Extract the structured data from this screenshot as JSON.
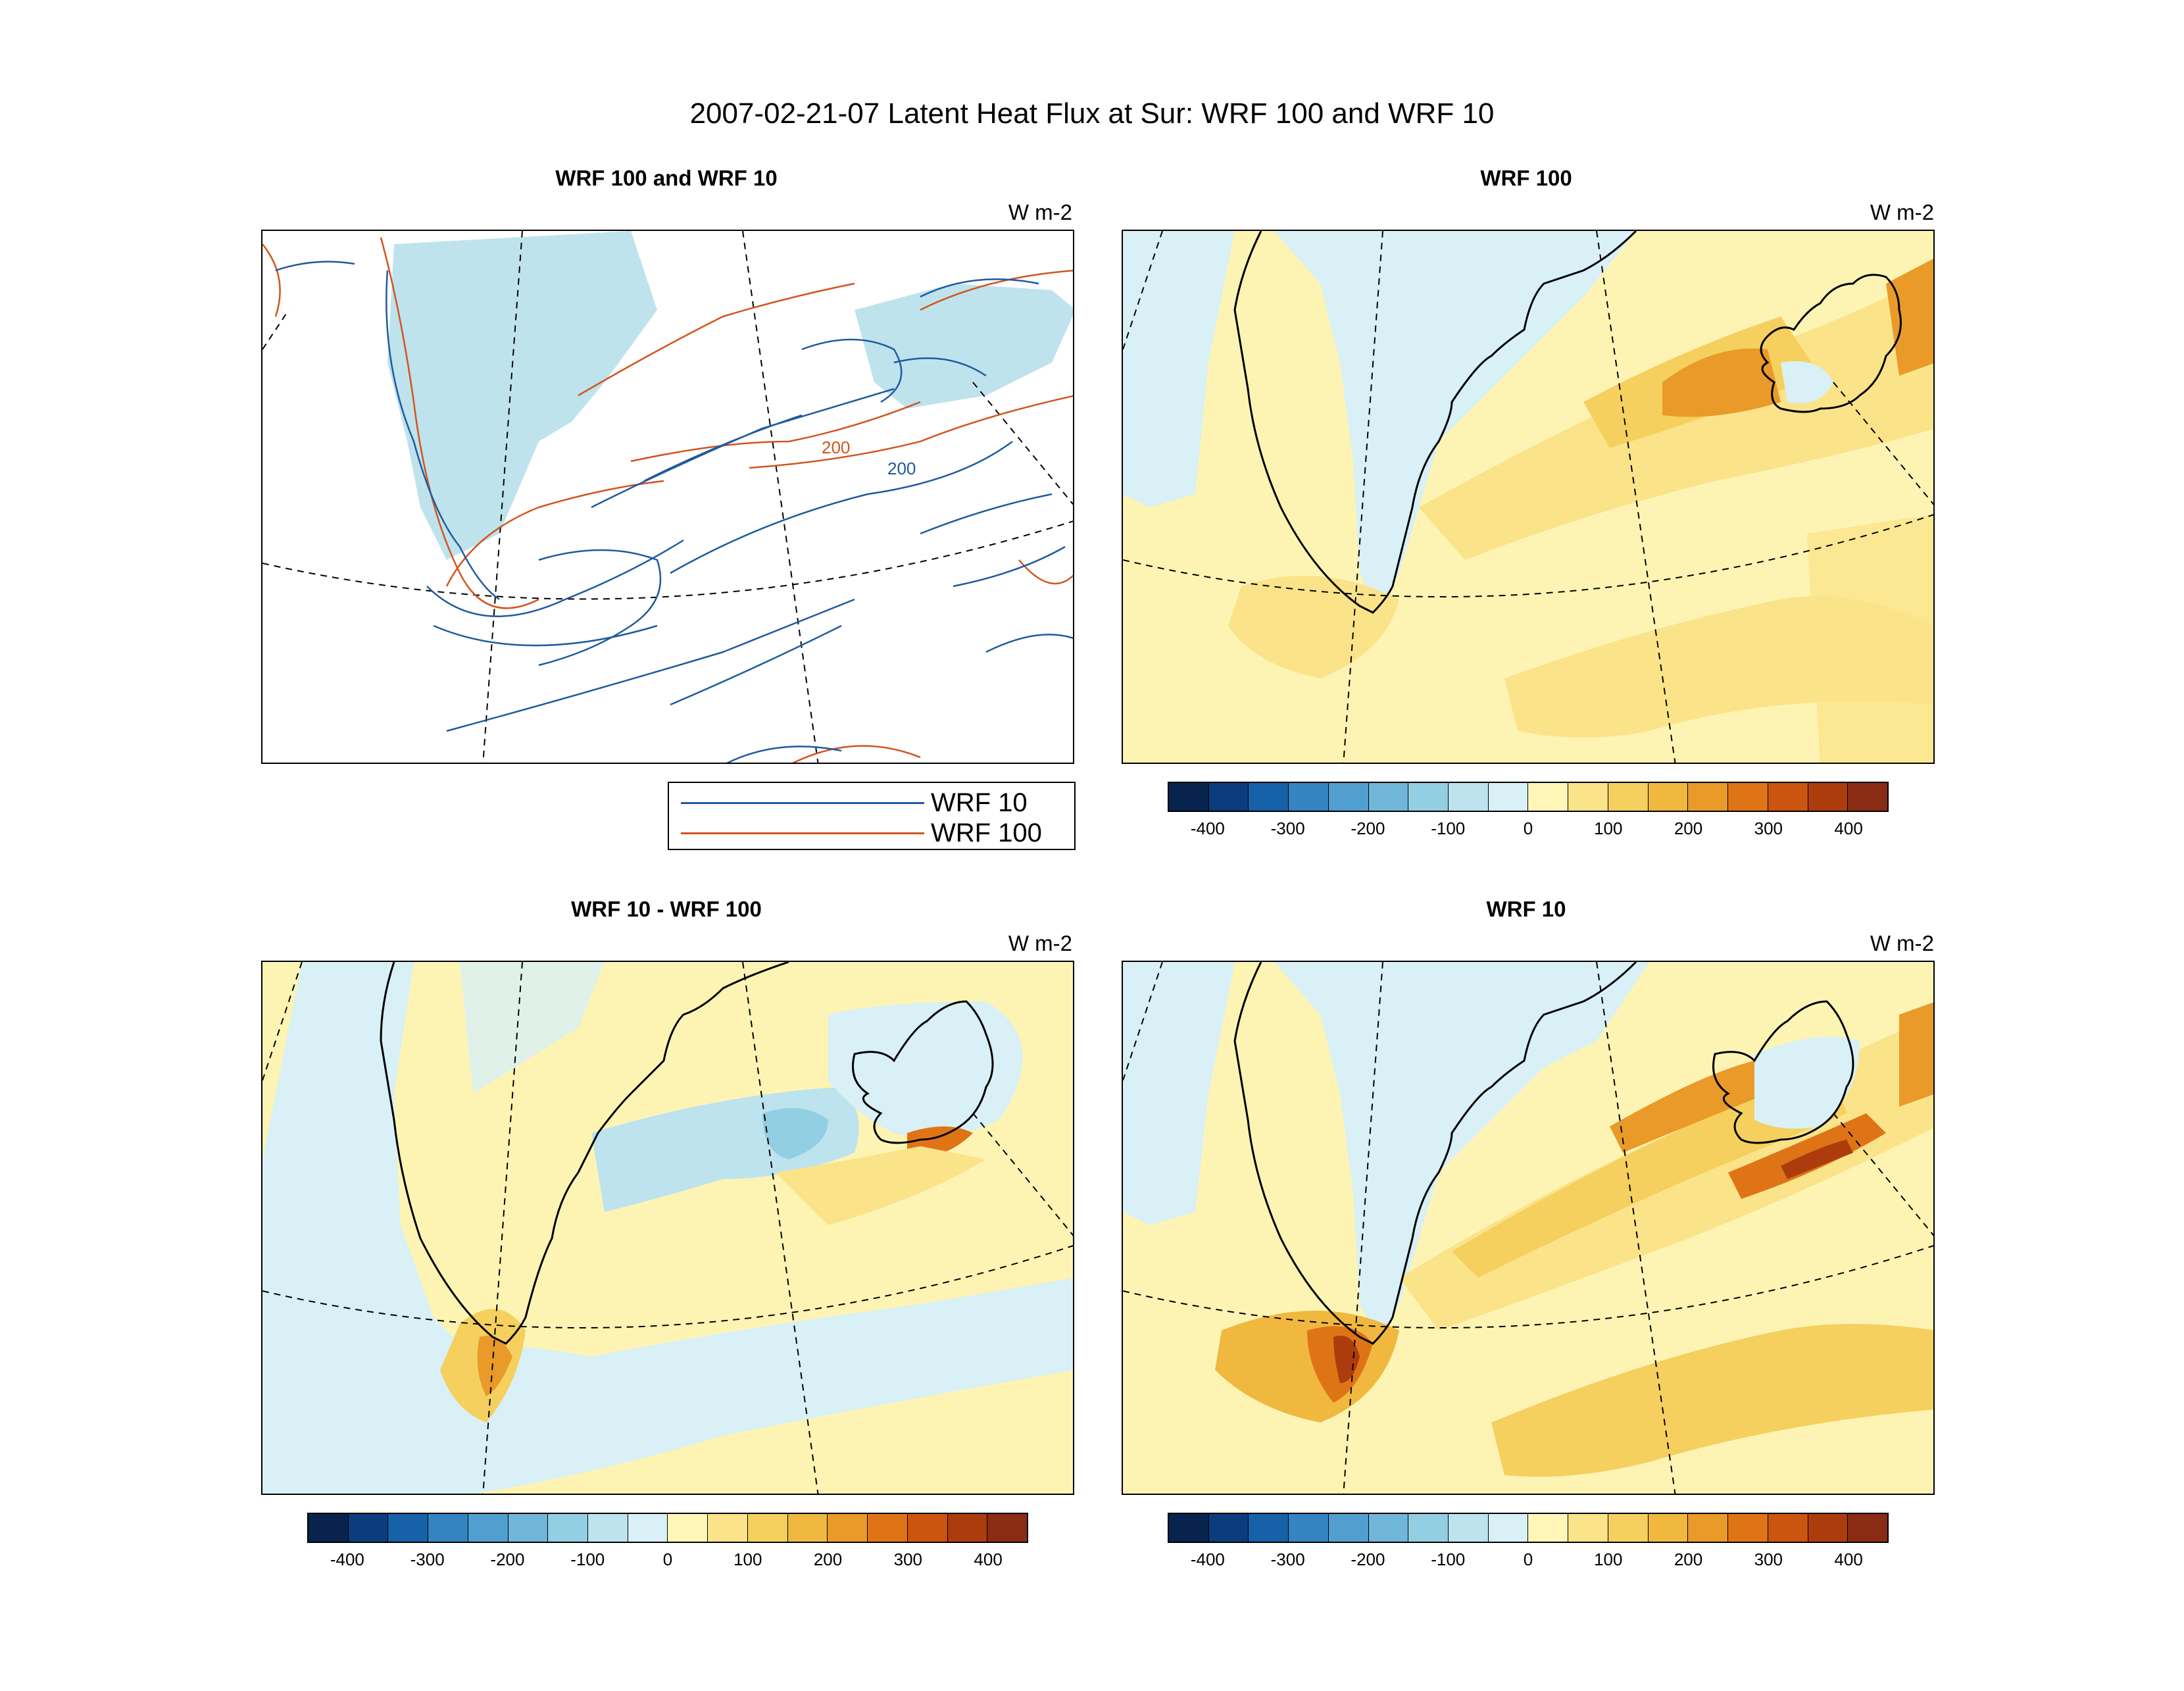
{
  "figure": {
    "title": "2007-02-21-07 Latent Heat Flux at Sur: WRF 100 and WRF 10"
  },
  "panels": [
    {
      "id": "overlay",
      "title": "WRF 100 and WRF 10",
      "units": "W m-2"
    },
    {
      "id": "wrf100",
      "title": "WRF 100",
      "units": "W m-2"
    },
    {
      "id": "diff",
      "title": "WRF 10 - WRF 100",
      "units": "W m-2"
    },
    {
      "id": "wrf10",
      "title": "WRF 10",
      "units": "W m-2"
    }
  ],
  "contour_labels": {
    "wrf100": "200",
    "wrf10": "200"
  },
  "legend": {
    "items": [
      {
        "label": "WRF 10",
        "color": "#1f5aa0"
      },
      {
        "label": "WRF 100",
        "color": "#d2541e"
      }
    ]
  },
  "colorbar": {
    "labels": [
      "-400",
      "-300",
      "-200",
      "-100",
      "0",
      "100",
      "200",
      "300",
      "400"
    ],
    "colors": [
      "#08244e",
      "#0b3c7e",
      "#1661a8",
      "#3484c2",
      "#519fd0",
      "#70b6da",
      "#93cfe2",
      "#bde3ee",
      "#d8f0f6",
      "#fff6b8",
      "#fbe38a",
      "#f5d05e",
      "#f0b83f",
      "#e99a28",
      "#df7417",
      "#cb540e",
      "#ad3c0d",
      "#8a2b14"
    ],
    "range": [
      -450,
      450
    ],
    "step": 50
  },
  "map": {
    "ocean_color": "#fdf4b4",
    "coastline_color": "#000000"
  }
}
